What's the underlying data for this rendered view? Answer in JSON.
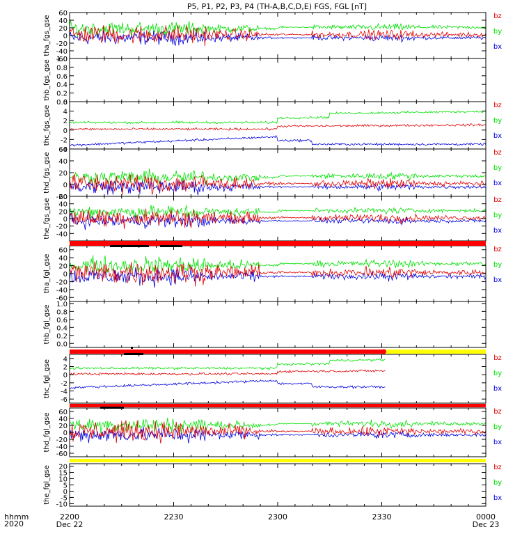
{
  "chart_data": {
    "type": "line",
    "title": "P5, P1, P2, P3, P4 (TH-A,B,C,D,E) FGS, FGL [nT]",
    "x_axis": {
      "row_labels": [
        "hhmm",
        "2020"
      ],
      "ticks": [
        {
          "label": "2200",
          "sublabel": "Dec 22",
          "t": 0
        },
        {
          "label": "2230",
          "sublabel": "",
          "t": 30
        },
        {
          "label": "2300",
          "sublabel": "",
          "t": 60
        },
        {
          "label": "2330",
          "sublabel": "",
          "t": 90
        },
        {
          "label": "0000",
          "sublabel": "Dec 23",
          "t": 120
        }
      ],
      "range_minutes": [
        0,
        120
      ]
    },
    "panels": [
      {
        "name": "tha_fgs_gse",
        "ylabel": "tha_fgs_gse",
        "ylim": [
          -60,
          60
        ],
        "yticks": [
          60,
          40,
          20,
          0,
          -20,
          -40,
          -60
        ],
        "legend": [
          "bz",
          "by",
          "bx"
        ],
        "has_data": true,
        "pattern": "A"
      },
      {
        "name": "thb_fgs_gse",
        "ylabel": "thb_fgs_gse",
        "ylim": [
          0,
          1
        ],
        "yticks": [
          1.0,
          0.8,
          0.6,
          0.4,
          0.2,
          0.0
        ],
        "legend": [],
        "has_data": false
      },
      {
        "name": "thc_fgs_gse",
        "ylabel": "thc_fgs_gse",
        "ylim": [
          -4,
          6
        ],
        "yticks": [
          6,
          4,
          2,
          0,
          -2,
          -4
        ],
        "legend": [
          "bz",
          "by",
          "bx"
        ],
        "has_data": true,
        "pattern": "C"
      },
      {
        "name": "thd_fgs_gse",
        "ylabel": "thd_fgs_gse",
        "ylim": [
          -20,
          60
        ],
        "yticks": [
          60,
          40,
          20,
          0,
          -20
        ],
        "legend": [
          "bz",
          "by",
          "bx"
        ],
        "has_data": true,
        "pattern": "D"
      },
      {
        "name": "the_fgs_gse",
        "ylabel": "the_fgs_gse",
        "ylim": [
          -60,
          60
        ],
        "yticks": [
          60,
          40,
          20,
          0,
          -20,
          -40
        ],
        "legend": [
          "bz",
          "by",
          "bx"
        ],
        "has_data": true,
        "pattern": "E"
      },
      {
        "name": "tha_fgl_gse",
        "ylabel": "tha_fgl_gse",
        "ylim": [
          -70,
          70
        ],
        "yticks": [
          60,
          40,
          20,
          0,
          -20,
          -40,
          -60
        ],
        "legend": [
          "bz",
          "by",
          "bx"
        ],
        "has_data": true,
        "pattern": "A"
      },
      {
        "name": "thb_fgl_gse",
        "ylabel": "thb_fgl_gse",
        "ylim": [
          -0.1,
          1.05
        ],
        "yticks": [
          1.0,
          0.8,
          0.6,
          0.4,
          0.2,
          0.0
        ],
        "legend": [],
        "has_data": false
      },
      {
        "name": "thc_fgl_gse",
        "ylabel": "thc_fgl_gse",
        "ylim": [
          -7,
          5
        ],
        "yticks": [
          4,
          2,
          0,
          -2,
          -4,
          -6
        ],
        "legend": [
          "bz",
          "by",
          "bx"
        ],
        "has_data": true,
        "pattern": "C",
        "end_minute": 91
      },
      {
        "name": "thd_fgl_gse",
        "ylabel": "thd_fgl_gse",
        "ylim": [
          -70,
          70
        ],
        "yticks": [
          60,
          40,
          20,
          0,
          -20,
          -40,
          -60
        ],
        "legend": [
          "bz",
          "by",
          "bx"
        ],
        "has_data": true,
        "pattern": "A"
      },
      {
        "name": "the_fgl_gse",
        "ylabel": "the_fgl_gse",
        "ylim": [
          -12,
          22
        ],
        "yticks": [
          20,
          15,
          10,
          5,
          0,
          -5,
          -10
        ],
        "legend": [
          "bz",
          "by",
          "bx"
        ],
        "has_data": false
      }
    ],
    "series_colors": {
      "bz": "#e00000",
      "by": "#00e000",
      "bx": "#0000e0"
    },
    "status_bars": [
      {
        "after_panel": 4,
        "color": "#ff0000"
      },
      {
        "after_panel": 6,
        "color": "#ff0000",
        "yellow_from_minute": 91
      },
      {
        "after_panel": 7,
        "color": "#ff0000"
      },
      {
        "after_panel": 8,
        "color": "#ffff00"
      }
    ]
  }
}
